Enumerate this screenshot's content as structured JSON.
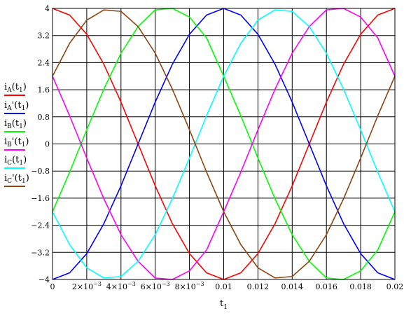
{
  "chart_data": {
    "type": "line",
    "xlabel": "t",
    "xlabel_sub": "1",
    "xlim": [
      0,
      0.02
    ],
    "ylim": [
      -4,
      4
    ],
    "x_ticks": [
      {
        "value": 0,
        "base": "0",
        "exp": ""
      },
      {
        "value": 0.002,
        "base": "2×10",
        "exp": "−3"
      },
      {
        "value": 0.004,
        "base": "4×10",
        "exp": "−3"
      },
      {
        "value": 0.006,
        "base": "6×10",
        "exp": "−3"
      },
      {
        "value": 0.008,
        "base": "8×10",
        "exp": "−3"
      },
      {
        "value": 0.01,
        "base": "0.01",
        "exp": ""
      },
      {
        "value": 0.012,
        "base": "0.012",
        "exp": ""
      },
      {
        "value": 0.014,
        "base": "0.014",
        "exp": ""
      },
      {
        "value": 0.016,
        "base": "0.016",
        "exp": ""
      },
      {
        "value": 0.018,
        "base": "0.018",
        "exp": ""
      },
      {
        "value": 0.02,
        "base": "0.02",
        "exp": ""
      }
    ],
    "y_ticks": [
      {
        "value": 4,
        "label": "4"
      },
      {
        "value": 3.2,
        "label": "3.2"
      },
      {
        "value": 2.4,
        "label": "2.4"
      },
      {
        "value": 1.6,
        "label": "1.6"
      },
      {
        "value": 0.8,
        "label": "0.8"
      },
      {
        "value": 0,
        "label": "0"
      },
      {
        "value": -0.8,
        "label": "−0.8"
      },
      {
        "value": -1.6,
        "label": "−1.6"
      },
      {
        "value": -2.4,
        "label": "−2.4"
      },
      {
        "value": -3.2,
        "label": "−3.2"
      },
      {
        "value": -4,
        "label": "−4"
      }
    ],
    "grid": true,
    "legend_position": "left",
    "x": [
      0,
      0.001,
      0.002,
      0.003,
      0.004,
      0.005,
      0.006,
      0.007,
      0.008,
      0.009,
      0.01,
      0.011,
      0.012,
      0.013,
      0.014,
      0.015,
      0.016,
      0.017,
      0.018,
      0.019,
      0.02
    ],
    "series": [
      {
        "name": "i",
        "sub": "A",
        "prime": false,
        "color": "#ff0000",
        "values": [
          4,
          3.804,
          3.236,
          2.351,
          1.236,
          0,
          -1.236,
          -2.351,
          -3.236,
          -3.804,
          -4,
          -3.804,
          -3.236,
          -2.351,
          -1.236,
          0,
          1.236,
          2.351,
          3.236,
          3.804,
          4
        ]
      },
      {
        "name": "i",
        "sub": "A",
        "prime": true,
        "color": "#0000ff",
        "values": [
          -4,
          -3.804,
          -3.236,
          -2.351,
          -1.236,
          0,
          1.236,
          2.351,
          3.236,
          3.804,
          4,
          3.804,
          3.236,
          2.351,
          1.236,
          0,
          -1.236,
          -2.351,
          -3.236,
          -3.804,
          -4
        ]
      },
      {
        "name": "i",
        "sub": "B",
        "prime": false,
        "color": "#00ff00",
        "values": [
          -2,
          -0.832,
          0.418,
          1.618,
          2.677,
          3.464,
          3.956,
          4,
          3.746,
          3.129,
          2,
          0.832,
          -0.418,
          -1.618,
          -2.677,
          -3.464,
          -3.956,
          -4,
          -3.746,
          -3.129,
          -2
        ]
      },
      {
        "name": "i",
        "sub": "B",
        "prime": true,
        "color": "#ff00ff",
        "values": [
          2,
          0.832,
          -0.418,
          -1.618,
          -2.677,
          -3.464,
          -3.956,
          -4,
          -3.746,
          -3.129,
          -2,
          -0.832,
          0.418,
          1.618,
          2.677,
          3.464,
          3.956,
          4,
          3.746,
          3.129,
          2
        ]
      },
      {
        "name": "i",
        "sub": "C",
        "prime": false,
        "color": "#00ffff",
        "values": [
          -2,
          -2.972,
          -3.654,
          -3.956,
          -3.912,
          -3.464,
          -2.677,
          -1.618,
          -0.418,
          0.832,
          2,
          2.972,
          3.654,
          3.956,
          3.912,
          3.464,
          2.677,
          1.618,
          0.418,
          -0.832,
          -2
        ]
      },
      {
        "name": "i",
        "sub": "C",
        "prime": true,
        "color": "#8b4513",
        "values": [
          2,
          2.972,
          3.654,
          3.956,
          3.912,
          3.464,
          2.677,
          1.618,
          0.418,
          -0.832,
          -2,
          -2.972,
          -3.654,
          -3.956,
          -3.912,
          -3.464,
          -2.677,
          -1.618,
          -0.418,
          0.832,
          2
        ]
      }
    ]
  }
}
